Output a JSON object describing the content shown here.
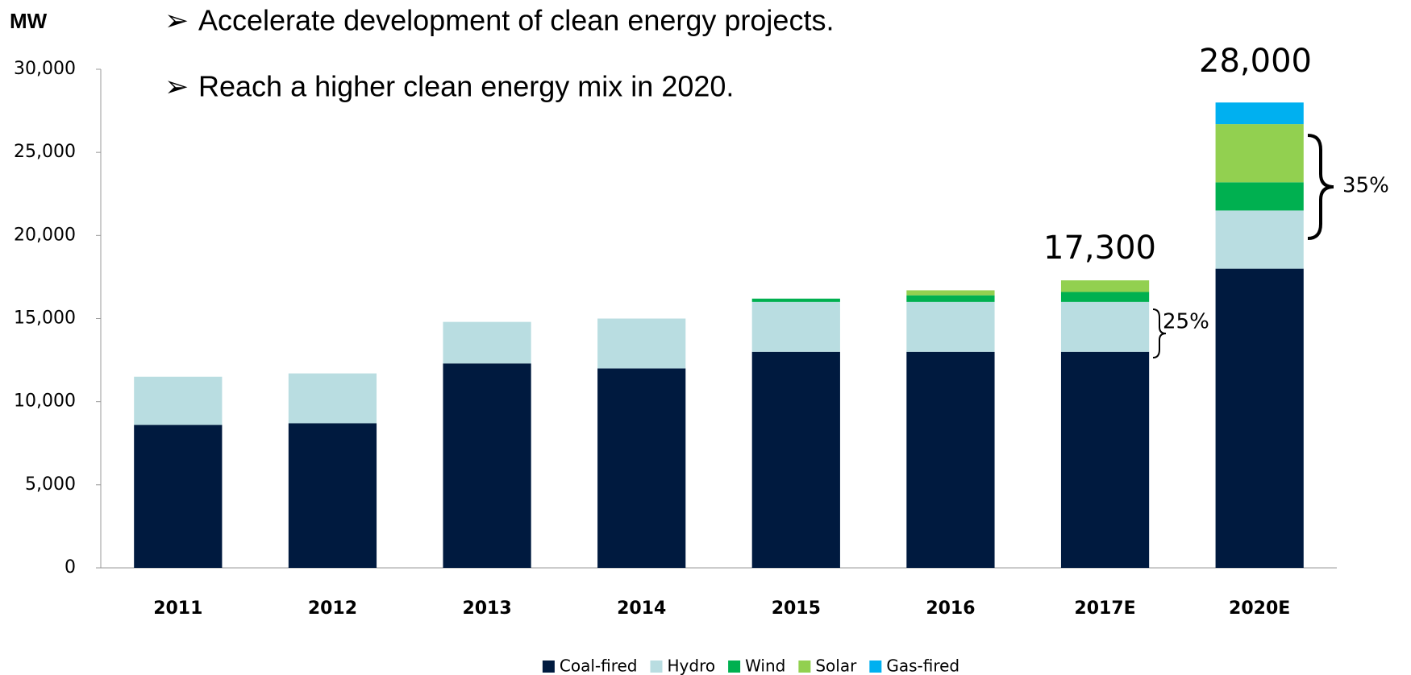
{
  "chart_data": {
    "type": "stacked_bar",
    "y_axis_label": "MW",
    "bullets": [
      "Accelerate development of clean energy projects.",
      "Reach a higher  clean energy mix in 2020."
    ],
    "categories": [
      "2011",
      "2012",
      "2013",
      "2014",
      "2015",
      "2016",
      "2017E",
      "2020E"
    ],
    "series": [
      {
        "name": "Coal-fired",
        "color": "#001a3f",
        "values": [
          8600,
          8700,
          12300,
          12000,
          13000,
          13000,
          13000,
          18000
        ]
      },
      {
        "name": "Hydro",
        "color": "#b9dde1",
        "values": [
          2900,
          3000,
          2500,
          3000,
          3000,
          3000,
          3000,
          3500
        ]
      },
      {
        "name": "Wind",
        "color": "#00b050",
        "values": [
          null,
          null,
          null,
          null,
          200,
          400,
          600,
          1700
        ]
      },
      {
        "name": "Solar",
        "color": "#92d050",
        "values": [
          null,
          null,
          null,
          null,
          null,
          300,
          700,
          3500
        ]
      },
      {
        "name": "Gas-fired",
        "color": "#00b0f0",
        "values": [
          null,
          null,
          null,
          null,
          null,
          null,
          null,
          1300
        ]
      }
    ],
    "annotations": [
      "17,300",
      "28,000",
      "25%",
      "35%"
    ],
    "ylim": [
      0,
      30000
    ],
    "yticks": [
      0,
      {
        "value": 5000,
        "label": "5,000"
      },
      {
        "value": 10000,
        "label": "10,000"
      },
      {
        "value": 15000,
        "label": "15,000"
      },
      {
        "value": 20000,
        "label": "20,000"
      },
      {
        "value": 25000,
        "label": "25,000"
      },
      {
        "value": 30000,
        "label": "30,000"
      }
    ],
    "grid": false,
    "legend": "bottom"
  }
}
